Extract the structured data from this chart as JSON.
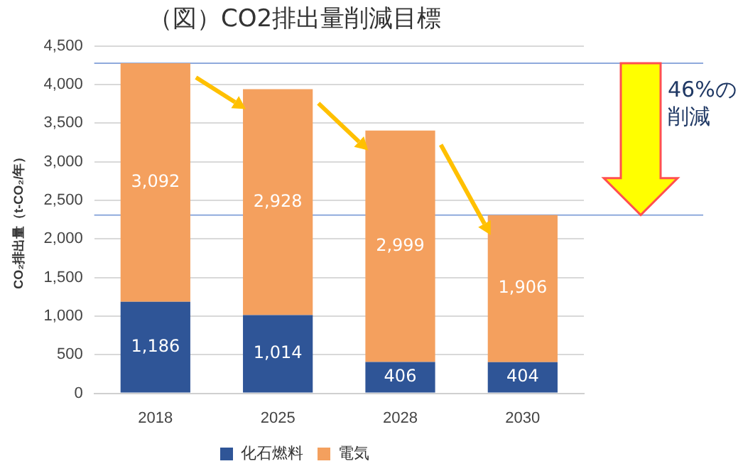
{
  "chart_data": {
    "type": "bar",
    "title": "（図）CO2排出量削減目標",
    "ylabel": "CO₂排出量（t-CO₂/年）",
    "categories": [
      "2018",
      "2025",
      "2028",
      "2030"
    ],
    "series": [
      {
        "name": "化石燃料",
        "color": "#2f5597",
        "values": [
          1186,
          1014,
          406,
          404
        ],
        "value_labels": [
          "1,186",
          "1,014",
          "406",
          "404"
        ]
      },
      {
        "name": "電気",
        "color": "#f4a05e",
        "values": [
          3092,
          2928,
          2999,
          1906
        ],
        "value_labels": [
          "3,092",
          "2,928",
          "2,999",
          "1,906"
        ]
      }
    ],
    "stacked": true,
    "grid": "y",
    "legend": "bottom",
    "ylim": [
      0,
      4500
    ],
    "yticks": [
      0,
      500,
      {
        "value": 1000,
        "label": "1,000"
      },
      {
        "value": 1500,
        "label": "1,500"
      },
      {
        "value": 2000,
        "label": "2,000"
      },
      {
        "value": 2500,
        "label": "2,500"
      },
      {
        "value": 3000,
        "label": "3,000"
      },
      {
        "value": 3500,
        "label": "3,500"
      },
      {
        "value": 4000,
        "label": "4,000"
      },
      {
        "value": 4500,
        "label": "4,500"
      }
    ],
    "ref_lines": [
      {
        "axis": "y",
        "value": 4278,
        "color": "#8faadc"
      },
      {
        "axis": "y",
        "value": 2310,
        "color": "#8faadc"
      }
    ],
    "annotations": [
      "46%の削減"
    ]
  }
}
